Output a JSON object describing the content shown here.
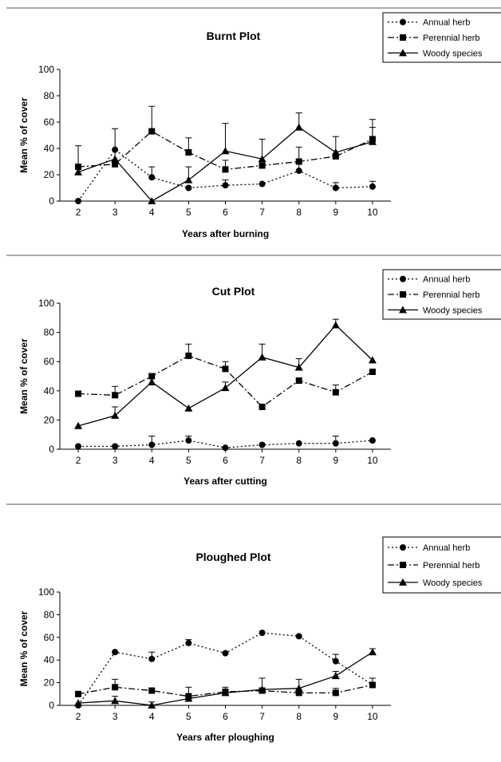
{
  "chart_data": [
    {
      "type": "line",
      "title": "Burnt Plot",
      "xlabel": "Years after burning",
      "ylabel": "Mean % of cover",
      "ylim": [
        0,
        100
      ],
      "y_ticks": [
        0,
        20,
        40,
        60,
        80,
        100
      ],
      "x": [
        2,
        3,
        4,
        5,
        6,
        7,
        8,
        9,
        10
      ],
      "grid": false,
      "legend_position": "top-right",
      "series": [
        {
          "name": "Annual herb",
          "marker": "circle",
          "style": "dotted",
          "values": [
            0,
            39,
            18,
            10,
            12,
            13,
            23,
            10,
            11
          ],
          "errors": [
            0,
            0,
            8,
            0,
            4,
            0,
            5,
            4,
            4
          ]
        },
        {
          "name": "Perennial herb",
          "marker": "square",
          "style": "dashdot",
          "values": [
            26,
            28,
            53,
            37,
            24,
            27,
            30,
            34,
            47
          ],
          "errors": [
            16,
            0,
            19,
            11,
            7,
            0,
            11,
            0,
            15
          ]
        },
        {
          "name": "Woody species",
          "marker": "triangle",
          "style": "solid",
          "values": [
            22,
            32,
            0,
            16,
            38,
            32,
            56,
            37,
            45
          ],
          "errors": [
            0,
            23,
            0,
            10,
            21,
            15,
            11,
            12,
            11
          ]
        }
      ]
    },
    {
      "type": "line",
      "title": "Cut Plot",
      "xlabel": "Years after cutting",
      "ylabel": "Mean % of cover",
      "ylim": [
        0,
        100
      ],
      "y_ticks": [
        0,
        20,
        40,
        60,
        80,
        100
      ],
      "x": [
        2,
        3,
        4,
        5,
        6,
        7,
        8,
        9,
        10
      ],
      "grid": false,
      "legend_position": "top-right",
      "series": [
        {
          "name": "Annual herb",
          "marker": "circle",
          "style": "dotted",
          "values": [
            2,
            2,
            3,
            6,
            1,
            3,
            4,
            4,
            6
          ],
          "errors": [
            0,
            0,
            6,
            3,
            0,
            0,
            0,
            5,
            0
          ]
        },
        {
          "name": "Perennial herb",
          "marker": "square",
          "style": "dashdot",
          "values": [
            38,
            37,
            50,
            64,
            55,
            29,
            47,
            39,
            53
          ],
          "errors": [
            0,
            6,
            0,
            8,
            5,
            0,
            0,
            5,
            0
          ]
        },
        {
          "name": "Woody species",
          "marker": "triangle",
          "style": "solid",
          "values": [
            16,
            23,
            46,
            28,
            42,
            63,
            56,
            85,
            61
          ],
          "errors": [
            0,
            6,
            0,
            0,
            4,
            9,
            6,
            4,
            0
          ]
        }
      ]
    },
    {
      "type": "line",
      "title": "Ploughed Plot",
      "xlabel": "Years after ploughing",
      "ylabel": "Mean % of cover",
      "ylim": [
        0,
        100
      ],
      "y_ticks": [
        0,
        20,
        40,
        60,
        80,
        100
      ],
      "x": [
        2,
        3,
        4,
        5,
        6,
        7,
        8,
        9,
        10
      ],
      "grid": false,
      "legend_position": "top-right",
      "series": [
        {
          "name": "Annual herb",
          "marker": "circle",
          "style": "dotted",
          "values": [
            0,
            47,
            41,
            55,
            46,
            64,
            61,
            39,
            18
          ],
          "errors": [
            0,
            0,
            6,
            3,
            0,
            0,
            0,
            6,
            0
          ]
        },
        {
          "name": "Perennial herb",
          "marker": "square",
          "style": "dashdot",
          "values": [
            10,
            16,
            13,
            8,
            12,
            13,
            11,
            11,
            18
          ],
          "errors": [
            0,
            7,
            0,
            8,
            4,
            0,
            0,
            4,
            6
          ]
        },
        {
          "name": "Woody species",
          "marker": "triangle",
          "style": "solid",
          "values": [
            2,
            4,
            0,
            6,
            11,
            14,
            15,
            26,
            47
          ],
          "errors": [
            0,
            4,
            3,
            0,
            0,
            10,
            8,
            4,
            3
          ]
        }
      ]
    }
  ]
}
